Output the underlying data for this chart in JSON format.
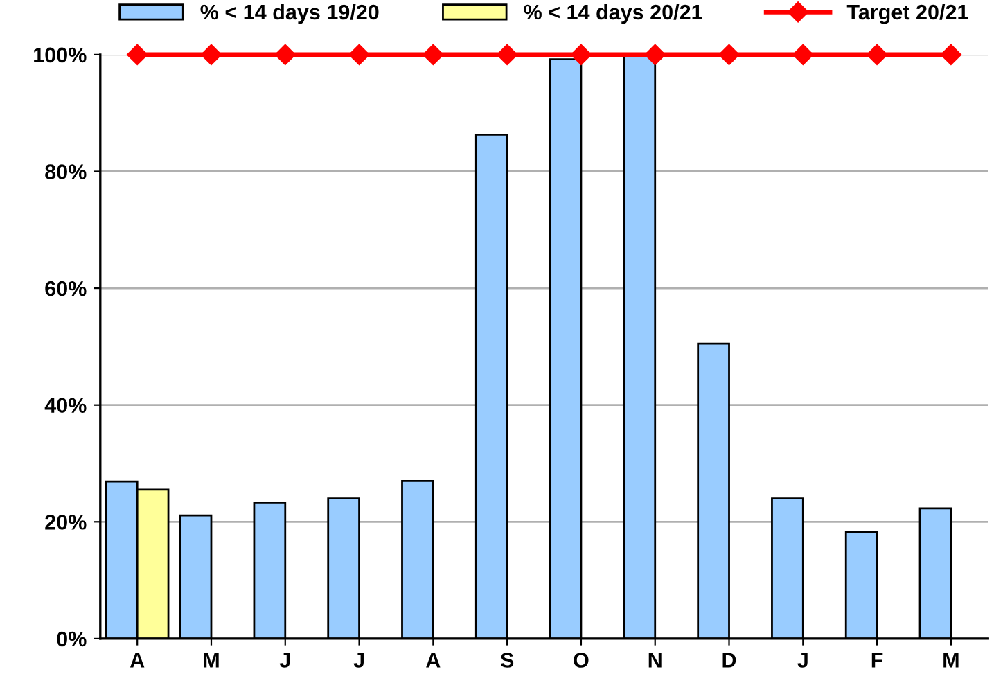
{
  "chart_data": {
    "type": "bar",
    "categories": [
      "A",
      "M",
      "J",
      "J",
      "A",
      "S",
      "O",
      "N",
      "D",
      "J",
      "F",
      "M"
    ],
    "series": [
      {
        "name": "% < 14 days 19/20",
        "color": "#99ccff",
        "values": [
          26.9,
          21.1,
          23.3,
          24.0,
          27.0,
          86.3,
          99.2,
          100,
          50.5,
          24.0,
          18.2,
          22.3
        ]
      },
      {
        "name": "% < 14 days 20/21",
        "color": "#ffff99",
        "values": [
          25.5,
          null,
          null,
          null,
          null,
          null,
          null,
          null,
          null,
          null,
          null,
          null
        ]
      },
      {
        "name": "Target 20/21",
        "type": "line",
        "color": "#ff0000",
        "marker": "diamond",
        "values": [
          100,
          100,
          100,
          100,
          100,
          100,
          100,
          100,
          100,
          100,
          100,
          100
        ]
      }
    ],
    "ylim": [
      0,
      100
    ],
    "yticks": [
      {
        "value": 0,
        "label": "0%"
      },
      {
        "value": 20,
        "label": "20%"
      },
      {
        "value": 40,
        "label": "40%"
      },
      {
        "value": 60,
        "label": "60%"
      },
      {
        "value": 80,
        "label": "80%"
      },
      {
        "value": 100,
        "label": "100%"
      }
    ],
    "grid": "y",
    "legend": "top"
  }
}
